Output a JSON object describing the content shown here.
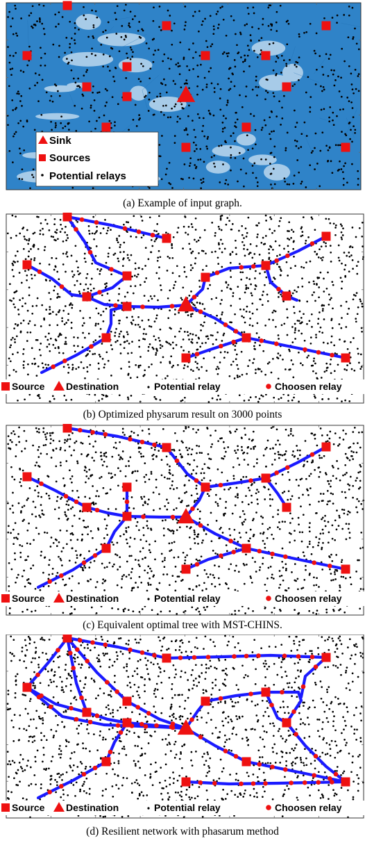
{
  "colors": {
    "edge": "#2f83c8",
    "path": "#1a1aff",
    "marker": "#ee1111",
    "relay": "#000000"
  },
  "panel_a": {
    "caption": "(a) Example of input graph.",
    "legend": {
      "sink": "Sink",
      "sources": "Sources",
      "potential_relays": "Potential relays"
    }
  },
  "panel_b": {
    "caption": "(b) Optimized physarum result on 3000 points",
    "legend": {
      "source": "Source",
      "destination": "Destination",
      "potential_relay": "Potential relay",
      "chosen_relay": "Choosen relay"
    }
  },
  "panel_c": {
    "caption": "(c) Equivalent optimal tree with MST-CHINS.",
    "legend": {
      "source": "Source",
      "destination": "Destination",
      "potential_relay": "Potential relay",
      "chosen_relay": "Choosen relay"
    }
  },
  "panel_d": {
    "caption": "(d) Resilient network with phasarum method",
    "legend": {
      "source": "Source",
      "destination": "Destination",
      "potential_relay": "Potential relay",
      "chosen_relay": "Choosen relay"
    }
  }
}
